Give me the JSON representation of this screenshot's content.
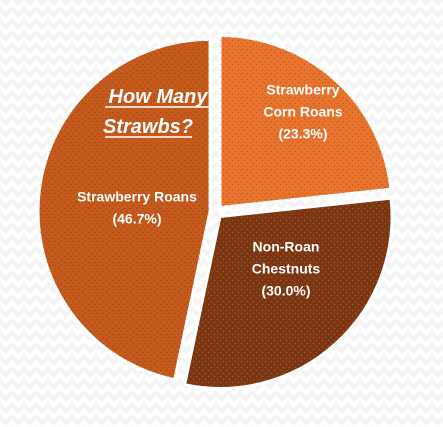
{
  "chart_data": {
    "type": "pie",
    "title_lines": [
      "How Many",
      "Strawbs?"
    ],
    "slices": [
      {
        "name_lines": [
          "Strawberry",
          "Corn Roans"
        ],
        "value": 23.3,
        "percent_label": "(23.3%)",
        "color": "#e8732d"
      },
      {
        "name_lines": [
          "Non-Roan",
          "Chestnuts"
        ],
        "value": 30.0,
        "percent_label": "(30.0%)",
        "color": "#7b3510"
      },
      {
        "name_lines": [
          "Strawberry Roans"
        ],
        "value": 46.7,
        "percent_label": "(46.7%)",
        "color": "#c55a1c"
      }
    ],
    "legend": "none",
    "exploded": true
  }
}
